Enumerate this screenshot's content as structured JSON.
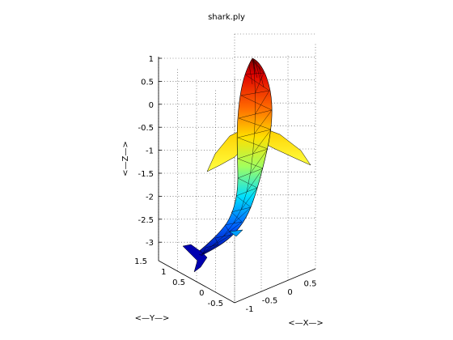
{
  "chart_data": {
    "type": "surface",
    "title": "shark.ply",
    "xlabel": "<—X—>",
    "ylabel": "<—Y—>",
    "zlabel": "<—Z—>",
    "x_ticks": [
      "-1",
      "-0.5",
      "0",
      "0.5"
    ],
    "y_ticks": [
      "-0.5",
      "0",
      "0.5",
      "1",
      "1.5"
    ],
    "z_ticks": [
      "1",
      "0.5",
      "0",
      "-0.5",
      "-1",
      "-1.5",
      "-2",
      "-2.5",
      "-3"
    ],
    "xlim": [
      -1.2,
      0.6
    ],
    "ylim": [
      -0.8,
      1.5
    ],
    "zlim": [
      -3.2,
      1.1
    ],
    "grid": true,
    "box": "open 3D axes",
    "colormap": "jet",
    "colormap_stops": [
      "#00008f",
      "#0000ff",
      "#00ffff",
      "#ffff00",
      "#ff0000",
      "#800000"
    ],
    "surface": {
      "description": "triangulated shark mesh, colored by Z height",
      "z_range": [
        -3.0,
        1.0
      ],
      "edge_color": "#000000"
    }
  }
}
